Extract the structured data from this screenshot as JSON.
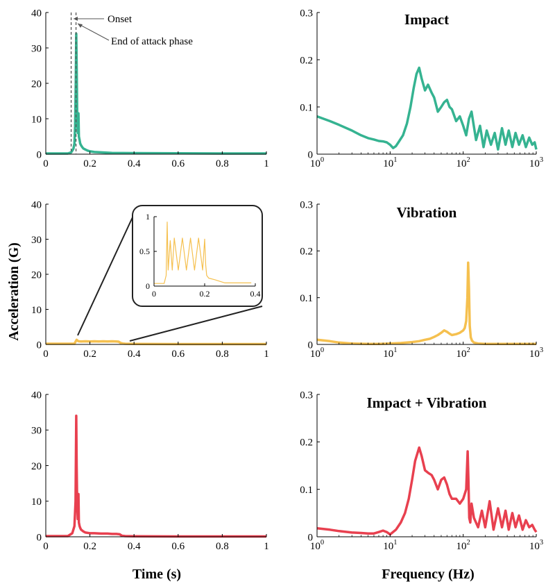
{
  "colors": {
    "impact": "#35b391",
    "vibration": "#f5c04f",
    "combined": "#e8404f",
    "axis": "#000000"
  },
  "figure": {
    "x_label_time": "Time (s)",
    "x_label_freq": "Frequency (Hz)",
    "y_label": "Acceleration (G)"
  },
  "annotations": {
    "onset": "Onset",
    "end_attack": "End of attack phase"
  },
  "chart_data": [
    {
      "id": "impact-time",
      "type": "line",
      "title": "",
      "xlabel": "",
      "ylabel": "",
      "xlim": [
        0,
        1
      ],
      "ylim": [
        0,
        40
      ],
      "xticks": [
        "0",
        "0.2",
        "0.4",
        "0.6",
        "0.8",
        "1"
      ],
      "yticks": [
        "0",
        "10",
        "20",
        "30",
        "40"
      ],
      "series": [
        {
          "color": "impact",
          "x": [
            0,
            0.1,
            0.115,
            0.125,
            0.13,
            0.133,
            0.136,
            0.138,
            0.14,
            0.142,
            0.145,
            0.148,
            0.15,
            0.153,
            0.156,
            0.16,
            0.165,
            0.17,
            0.18,
            0.19,
            0.2,
            0.22,
            0.25,
            0.3,
            0.4,
            0.6,
            0.8,
            1.0
          ],
          "y": [
            0.2,
            0.2,
            0.5,
            1.5,
            3,
            8,
            20,
            34,
            25,
            12,
            6,
            11.5,
            5,
            4,
            3,
            2.5,
            2,
            1.6,
            1.3,
            1.0,
            0.8,
            0.6,
            0.5,
            0.35,
            0.3,
            0.25,
            0.2,
            0.2
          ]
        }
      ],
      "markers": [
        {
          "x": 0.115,
          "label": "onset"
        },
        {
          "x": 0.137,
          "label": "end_attack"
        }
      ]
    },
    {
      "id": "impact-freq",
      "type": "line",
      "title": "Impact",
      "xlabel": "",
      "ylabel": "",
      "xscale": "log",
      "xlim": [
        1,
        1000
      ],
      "ylim": [
        0,
        0.3
      ],
      "xticks": [
        "10^0",
        "10^1",
        "10^2",
        "10^3"
      ],
      "yticks": [
        "0",
        "0.1",
        "0.2",
        "0.3"
      ],
      "series": [
        {
          "color": "impact",
          "x": [
            1,
            1.5,
            2,
            3,
            4,
            5,
            6,
            7,
            8,
            9,
            10,
            11,
            12,
            13,
            15,
            17,
            19,
            21,
            23,
            25,
            27,
            30,
            33,
            37,
            40,
            45,
            50,
            55,
            60,
            65,
            70,
            80,
            90,
            100,
            110,
            120,
            130,
            150,
            170,
            190,
            210,
            240,
            270,
            300,
            340,
            380,
            420,
            470,
            520,
            580,
            650,
            720,
            800,
            880,
            950,
            1000
          ],
          "y": [
            0.08,
            0.07,
            0.062,
            0.05,
            0.04,
            0.034,
            0.031,
            0.028,
            0.027,
            0.025,
            0.02,
            0.013,
            0.017,
            0.025,
            0.04,
            0.065,
            0.1,
            0.14,
            0.17,
            0.183,
            0.16,
            0.135,
            0.147,
            0.13,
            0.12,
            0.09,
            0.1,
            0.11,
            0.115,
            0.1,
            0.095,
            0.07,
            0.08,
            0.06,
            0.04,
            0.075,
            0.09,
            0.03,
            0.06,
            0.015,
            0.05,
            0.02,
            0.045,
            0.01,
            0.055,
            0.02,
            0.05,
            0.015,
            0.045,
            0.02,
            0.04,
            0.015,
            0.035,
            0.02,
            0.025,
            0.01
          ]
        }
      ]
    },
    {
      "id": "vibration-time",
      "type": "line",
      "title": "",
      "xlabel": "",
      "ylabel": "",
      "xlim": [
        0,
        1
      ],
      "ylim": [
        0,
        40
      ],
      "xticks": [
        "0",
        "0.2",
        "0.4",
        "0.6",
        "0.8",
        "1"
      ],
      "yticks": [
        "0",
        "10",
        "20",
        "30",
        "40"
      ],
      "series": [
        {
          "color": "vibration",
          "x": [
            0,
            0.13,
            0.135,
            0.14,
            0.145,
            0.15,
            0.16,
            0.18,
            0.2,
            0.22,
            0.24,
            0.26,
            0.28,
            0.3,
            0.32,
            0.33,
            0.34,
            0.35,
            0.36,
            0.4,
            0.6,
            0.8,
            1.0
          ],
          "y": [
            0.2,
            0.2,
            0.8,
            1.3,
            1.0,
            0.9,
            0.85,
            0.9,
            0.85,
            0.9,
            0.85,
            0.9,
            0.85,
            0.9,
            0.85,
            0.8,
            0.4,
            0.25,
            0.2,
            0.15,
            0.1,
            0.1,
            0.1
          ]
        }
      ]
    },
    {
      "id": "vibration-inset",
      "type": "line",
      "title": "",
      "xlabel": "",
      "ylabel": "",
      "xlim": [
        0,
        0.5
      ],
      "ylim": [
        0,
        1.3
      ],
      "xticks": [
        "0",
        "0.2",
        "0.4"
      ],
      "yticks": [
        "0",
        "0.5",
        "1"
      ],
      "series": [
        {
          "color": "vibration",
          "x": [
            0,
            0.05,
            0.06,
            0.065,
            0.07,
            0.08,
            0.09,
            0.1,
            0.12,
            0.14,
            0.16,
            0.18,
            0.2,
            0.22,
            0.24,
            0.25,
            0.255,
            0.26,
            0.27,
            0.3,
            0.35,
            0.4,
            0.45,
            0.48
          ],
          "y": [
            0.05,
            0.05,
            0.2,
            1.2,
            0.3,
            0.85,
            0.3,
            0.9,
            0.3,
            0.9,
            0.3,
            0.9,
            0.3,
            0.9,
            0.3,
            0.88,
            0.4,
            0.2,
            0.15,
            0.12,
            0.06,
            0.06,
            0.06,
            0.06
          ]
        }
      ]
    },
    {
      "id": "vibration-freq",
      "type": "line",
      "title": "Vibration",
      "xlabel": "",
      "ylabel": "",
      "xscale": "log",
      "xlim": [
        1,
        1000
      ],
      "ylim": [
        0,
        0.3
      ],
      "xticks": [
        "10^0",
        "10^1",
        "10^2",
        "10^3"
      ],
      "yticks": [
        "0",
        "0.1",
        "0.2",
        "0.3"
      ],
      "series": [
        {
          "color": "vibration",
          "x": [
            1,
            1.5,
            2,
            3,
            5,
            7,
            10,
            14,
            20,
            25,
            30,
            35,
            40,
            45,
            50,
            55,
            60,
            65,
            70,
            80,
            90,
            100,
            105,
            110,
            114,
            117,
            120,
            123,
            127,
            132,
            140,
            160,
            200,
            300,
            500,
            1000
          ],
          "y": [
            0.01,
            0.007,
            0.004,
            0.002,
            0.001,
            0.001,
            0.002,
            0.003,
            0.005,
            0.007,
            0.01,
            0.012,
            0.016,
            0.02,
            0.025,
            0.03,
            0.027,
            0.023,
            0.02,
            0.022,
            0.025,
            0.03,
            0.035,
            0.05,
            0.1,
            0.175,
            0.12,
            0.04,
            0.015,
            0.008,
            0.004,
            0.002,
            0.001,
            0.001,
            0.001,
            0.001
          ]
        }
      ]
    },
    {
      "id": "combined-time",
      "type": "line",
      "title": "",
      "xlabel": "Time (s)",
      "ylabel": "",
      "xlim": [
        0,
        1
      ],
      "ylim": [
        0,
        40
      ],
      "xticks": [
        "0",
        "0.2",
        "0.4",
        "0.6",
        "0.8",
        "1"
      ],
      "yticks": [
        "0",
        "10",
        "20",
        "30",
        "40"
      ],
      "series": [
        {
          "color": "combined",
          "x": [
            0,
            0.1,
            0.12,
            0.13,
            0.135,
            0.138,
            0.14,
            0.142,
            0.145,
            0.148,
            0.15,
            0.153,
            0.156,
            0.16,
            0.17,
            0.18,
            0.2,
            0.22,
            0.25,
            0.28,
            0.3,
            0.32,
            0.335,
            0.345,
            0.36,
            0.4,
            0.6,
            0.8,
            1.0
          ],
          "y": [
            0.2,
            0.2,
            1,
            3,
            10,
            34,
            20,
            10,
            5,
            12,
            4,
            3,
            2.5,
            2,
            1.5,
            1.2,
            1.0,
            1.0,
            0.9,
            0.9,
            0.8,
            0.8,
            0.7,
            0.3,
            0.2,
            0.15,
            0.1,
            0.1,
            0.1
          ]
        }
      ]
    },
    {
      "id": "combined-freq",
      "type": "line",
      "title": "Impact + Vibration",
      "xlabel": "Frequency (Hz)",
      "ylabel": "",
      "xscale": "log",
      "xlim": [
        1,
        1000
      ],
      "ylim": [
        0,
        0.3
      ],
      "xticks": [
        "10^0",
        "10^1",
        "10^2",
        "10^3"
      ],
      "yticks": [
        "0",
        "0.1",
        "0.2",
        "0.3"
      ],
      "series": [
        {
          "color": "combined",
          "x": [
            1,
            1.5,
            2,
            3,
            4,
            5,
            6,
            7,
            8,
            9,
            10,
            12,
            14,
            16,
            18,
            20,
            22,
            25,
            27,
            30,
            33,
            37,
            40,
            45,
            50,
            55,
            60,
            65,
            70,
            80,
            90,
            100,
            110,
            115,
            118,
            121,
            125,
            130,
            140,
            160,
            180,
            200,
            230,
            260,
            300,
            340,
            380,
            420,
            470,
            520,
            580,
            650,
            720,
            800,
            880,
            950,
            1000
          ],
          "y": [
            0.018,
            0.015,
            0.012,
            0.009,
            0.008,
            0.007,
            0.007,
            0.01,
            0.013,
            0.01,
            0.005,
            0.015,
            0.03,
            0.05,
            0.08,
            0.12,
            0.16,
            0.188,
            0.17,
            0.14,
            0.135,
            0.13,
            0.12,
            0.1,
            0.12,
            0.125,
            0.11,
            0.09,
            0.08,
            0.08,
            0.07,
            0.08,
            0.1,
            0.18,
            0.12,
            0.04,
            0.03,
            0.07,
            0.04,
            0.02,
            0.055,
            0.02,
            0.075,
            0.015,
            0.06,
            0.02,
            0.055,
            0.015,
            0.05,
            0.02,
            0.045,
            0.015,
            0.035,
            0.02,
            0.025,
            0.015,
            0.01
          ]
        }
      ]
    }
  ]
}
